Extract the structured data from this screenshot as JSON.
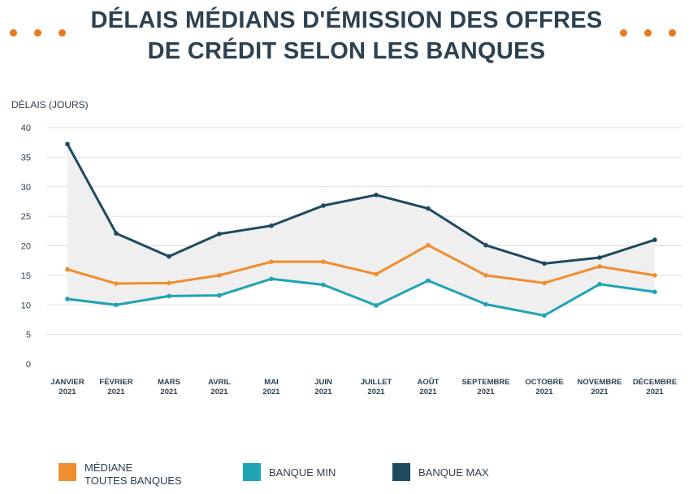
{
  "title": {
    "line1": "DÉLAIS MÉDIANS D'ÉMISSION DES OFFRES",
    "line2": "DE CRÉDIT SELON LES BANQUES"
  },
  "colors": {
    "mediane": "#ef8e2f",
    "min": "#1fa3b5",
    "max": "#1e4a60",
    "band": "#efefef",
    "grid": "#dcdcdc",
    "dots": "#ea7a1f"
  },
  "chart_data": {
    "type": "line",
    "ylabel": "DÉLAIS (JOURS)",
    "ylim": [
      0,
      40
    ],
    "yticks": [
      0,
      5,
      10,
      15,
      20,
      25,
      30,
      35,
      40
    ],
    "grid": true,
    "legend_position": "bottom",
    "categories": [
      [
        "JANVIER",
        "2021"
      ],
      [
        "FÉVRIER",
        "2021"
      ],
      [
        "MARS",
        "2021"
      ],
      [
        "AVRIL",
        "2021"
      ],
      [
        "MAI",
        "2021"
      ],
      [
        "JUIN",
        "2021"
      ],
      [
        "JUILLET",
        "2021"
      ],
      [
        "AOÛT",
        "2021"
      ],
      [
        "SEPTEMBRE",
        "2021"
      ],
      [
        "OCTOBRE",
        "2021"
      ],
      [
        "NOVEMBRE",
        "2021"
      ],
      [
        "DÉCEMBRE",
        "2021"
      ]
    ],
    "series": [
      {
        "key": "mediane",
        "name": "MÉDIANE TOUTES BANQUES",
        "values": [
          16.0,
          13.6,
          13.7,
          15.0,
          17.3,
          17.3,
          15.2,
          20.1,
          15.0,
          13.7,
          16.5,
          15.0
        ]
      },
      {
        "key": "min",
        "name": "BANQUE MIN",
        "values": [
          11.0,
          10.0,
          11.5,
          11.6,
          14.4,
          13.4,
          9.9,
          14.1,
          10.1,
          8.2,
          13.5,
          12.2
        ]
      },
      {
        "key": "max",
        "name": "BANQUE MAX",
        "values": [
          37.2,
          22.1,
          18.2,
          22.0,
          23.4,
          26.8,
          28.6,
          26.3,
          20.1,
          17.0,
          18.0,
          21.0
        ]
      }
    ]
  },
  "legend": [
    {
      "key": "mediane",
      "line1": "MÉDIANE",
      "line2": "TOUTES BANQUES"
    },
    {
      "key": "min",
      "line1": "BANQUE MIN",
      "line2": ""
    },
    {
      "key": "max",
      "line1": "BANQUE MAX",
      "line2": ""
    }
  ]
}
